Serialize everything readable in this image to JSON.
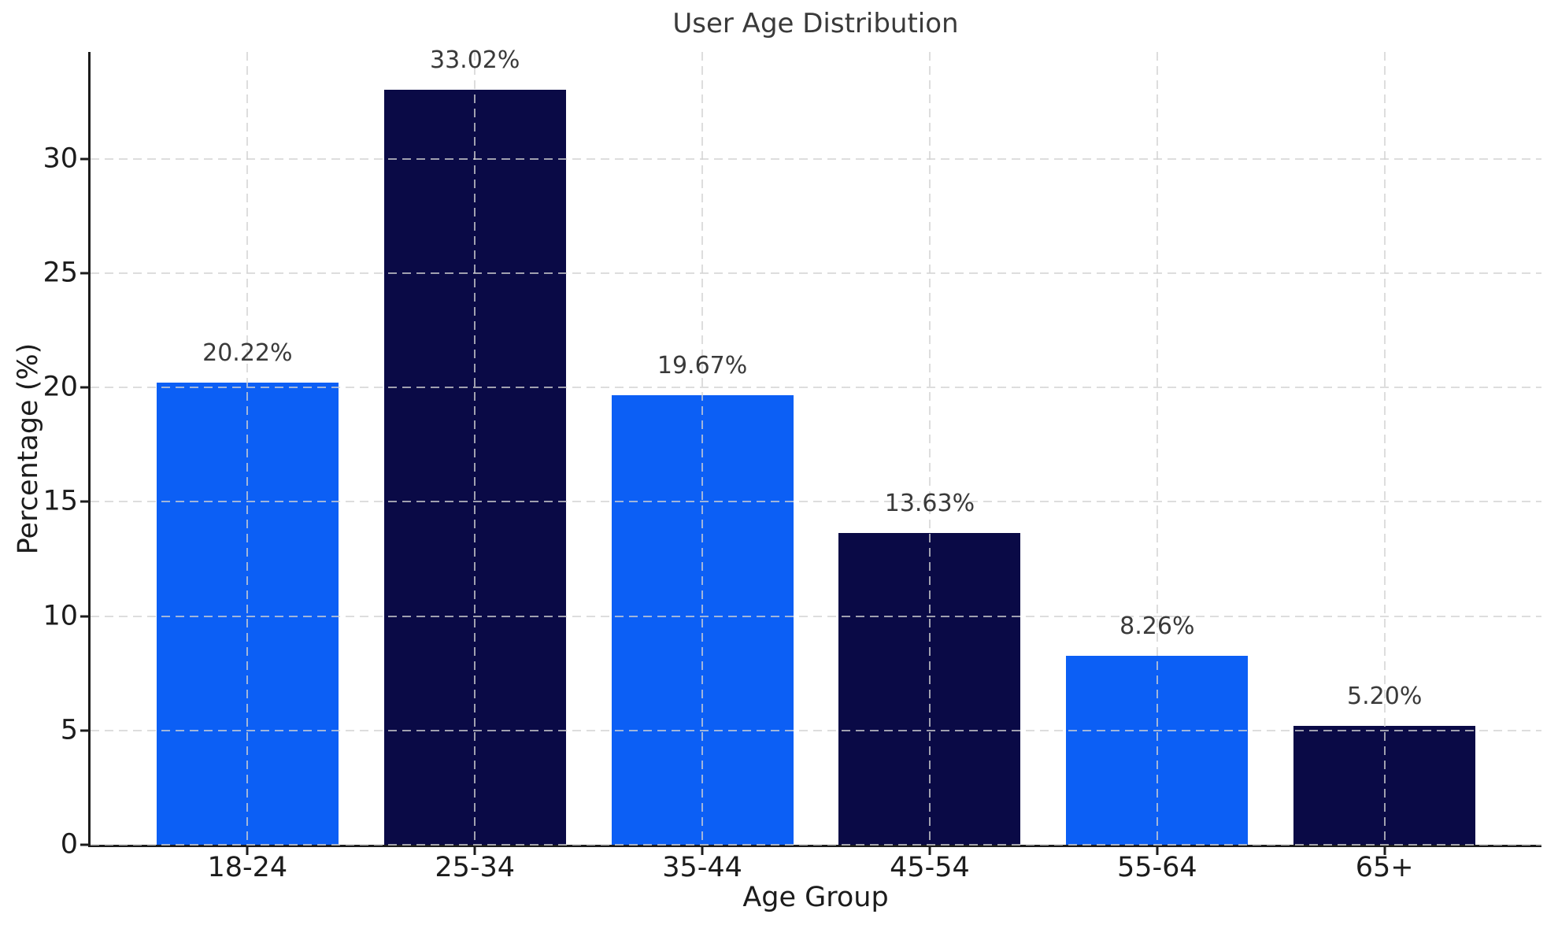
{
  "chart_data": {
    "type": "bar",
    "title": "User Age Distribution",
    "xlabel": "Age Group",
    "ylabel": "Percentage (%)",
    "categories": [
      "18-24",
      "25-34",
      "35-44",
      "45-54",
      "55-64",
      "65+"
    ],
    "values": [
      20.22,
      33.02,
      19.67,
      13.63,
      8.26,
      5.2
    ],
    "value_labels": [
      "20.22%",
      "33.02%",
      "19.67%",
      "13.63%",
      "8.26%",
      "5.20%"
    ],
    "colors_by_bar": [
      "#0c5ff5",
      "#0a0a46",
      "#0c5ff5",
      "#0a0a46",
      "#0c5ff5",
      "#0a0a46"
    ],
    "yticks": [
      0,
      5,
      10,
      15,
      20,
      25,
      30
    ],
    "ylim": [
      0,
      34.67
    ],
    "xlim": [
      -0.69,
      5.69
    ],
    "bar_width": 0.8,
    "grid": {
      "style": "dashed",
      "color": "#d2d2d2",
      "axes": "both",
      "over_bars": true
    },
    "legend": null,
    "background": "#ffffff",
    "spine_color": "#1c1c1c",
    "title_color": "#3a3a3a",
    "label_color": "#1c1c1c",
    "value_label_color": "#3a3a3a"
  }
}
